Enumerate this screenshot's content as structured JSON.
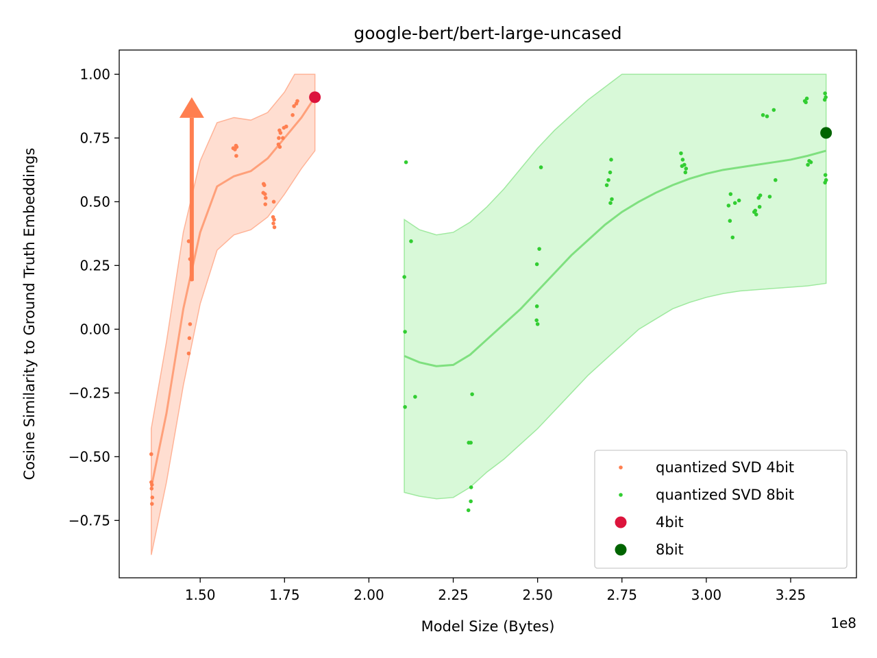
{
  "chart_data": {
    "type": "scatter",
    "title": "google-bert/bert-large-uncased",
    "xlabel": "Model Size (Bytes)",
    "ylabel": "Cosine Similarity to Ground Truth Embeddings",
    "x_offset_label": "1e8",
    "xlim": [
      1.26,
      3.445
    ],
    "ylim": [
      -0.975,
      1.095
    ],
    "x_ticks": [
      1.5,
      1.75,
      2.0,
      2.25,
      2.5,
      2.75,
      3.0,
      3.25
    ],
    "x_tick_labels": [
      "1.50",
      "1.75",
      "2.00",
      "2.25",
      "2.50",
      "2.75",
      "3.00",
      "3.25"
    ],
    "y_ticks": [
      1.0,
      0.75,
      0.5,
      0.25,
      0.0,
      -0.25,
      -0.5,
      -0.75
    ],
    "y_tick_labels": [
      "1.00",
      "0.75",
      "0.50",
      "0.25",
      "0.00",
      "−0.25",
      "−0.50",
      "−0.75"
    ],
    "legend_position": "lower-right",
    "series": [
      {
        "name": "quantized SVD 4bit",
        "color": "#ff7f50",
        "points": [
          [
            1.355,
            -0.49
          ],
          [
            1.355,
            -0.6
          ],
          [
            1.357,
            -0.61
          ],
          [
            1.356,
            -0.625
          ],
          [
            1.358,
            -0.66
          ],
          [
            1.357,
            -0.685
          ],
          [
            1.466,
            0.345
          ],
          [
            1.47,
            0.275
          ],
          [
            1.475,
            0.195
          ],
          [
            1.47,
            0.02
          ],
          [
            1.468,
            -0.035
          ],
          [
            1.466,
            -0.095
          ],
          [
            1.598,
            0.71
          ],
          [
            1.603,
            0.705
          ],
          [
            1.606,
            0.72
          ],
          [
            1.608,
            0.715
          ],
          [
            1.607,
            0.68
          ],
          [
            1.688,
            0.57
          ],
          [
            1.69,
            0.565
          ],
          [
            1.687,
            0.535
          ],
          [
            1.692,
            0.53
          ],
          [
            1.694,
            0.515
          ],
          [
            1.693,
            0.49
          ],
          [
            1.718,
            0.5
          ],
          [
            1.716,
            0.44
          ],
          [
            1.719,
            0.43
          ],
          [
            1.717,
            0.415
          ],
          [
            1.72,
            0.4
          ],
          [
            1.735,
            0.78
          ],
          [
            1.738,
            0.77
          ],
          [
            1.733,
            0.75
          ],
          [
            1.732,
            0.725
          ],
          [
            1.736,
            0.715
          ],
          [
            1.748,
            0.79
          ],
          [
            1.755,
            0.795
          ],
          [
            1.745,
            0.75
          ],
          [
            1.774,
            0.84
          ],
          [
            1.778,
            0.875
          ],
          [
            1.785,
            0.885
          ],
          [
            1.788,
            0.895
          ]
        ],
        "trend": [
          [
            1.355,
            -0.62
          ],
          [
            1.4,
            -0.33
          ],
          [
            1.45,
            0.08
          ],
          [
            1.5,
            0.38
          ],
          [
            1.55,
            0.56
          ],
          [
            1.6,
            0.6
          ],
          [
            1.65,
            0.62
          ],
          [
            1.7,
            0.67
          ],
          [
            1.75,
            0.75
          ],
          [
            1.8,
            0.83
          ],
          [
            1.84,
            0.91
          ]
        ],
        "band_upper": [
          [
            1.355,
            -0.39
          ],
          [
            1.4,
            -0.05
          ],
          [
            1.45,
            0.38
          ],
          [
            1.5,
            0.66
          ],
          [
            1.55,
            0.81
          ],
          [
            1.6,
            0.83
          ],
          [
            1.65,
            0.82
          ],
          [
            1.7,
            0.85
          ],
          [
            1.75,
            0.93
          ],
          [
            1.78,
            1.0
          ],
          [
            1.84,
            1.0
          ]
        ],
        "band_lower": [
          [
            1.355,
            -0.885
          ],
          [
            1.4,
            -0.6
          ],
          [
            1.45,
            -0.22
          ],
          [
            1.5,
            0.1
          ],
          [
            1.55,
            0.31
          ],
          [
            1.6,
            0.37
          ],
          [
            1.65,
            0.39
          ],
          [
            1.7,
            0.44
          ],
          [
            1.75,
            0.53
          ],
          [
            1.8,
            0.63
          ],
          [
            1.84,
            0.7
          ]
        ]
      },
      {
        "name": "quantized SVD 8bit",
        "color": "#32cd32",
        "points": [
          [
            2.11,
            0.655
          ],
          [
            2.125,
            0.345
          ],
          [
            2.105,
            0.205
          ],
          [
            2.107,
            -0.01
          ],
          [
            2.137,
            -0.265
          ],
          [
            2.107,
            -0.305
          ],
          [
            2.296,
            -0.445
          ],
          [
            2.302,
            -0.445
          ],
          [
            2.306,
            -0.255
          ],
          [
            2.303,
            -0.62
          ],
          [
            2.302,
            -0.675
          ],
          [
            2.295,
            -0.71
          ],
          [
            2.51,
            0.635
          ],
          [
            2.505,
            0.315
          ],
          [
            2.498,
            0.255
          ],
          [
            2.498,
            0.09
          ],
          [
            2.497,
            0.035
          ],
          [
            2.5,
            0.02
          ],
          [
            2.718,
            0.665
          ],
          [
            2.715,
            0.615
          ],
          [
            2.71,
            0.585
          ],
          [
            2.705,
            0.565
          ],
          [
            2.72,
            0.51
          ],
          [
            2.716,
            0.495
          ],
          [
            2.925,
            0.69
          ],
          [
            2.93,
            0.665
          ],
          [
            2.935,
            0.645
          ],
          [
            2.94,
            0.63
          ],
          [
            2.928,
            0.64
          ],
          [
            2.938,
            0.615
          ],
          [
            3.072,
            0.53
          ],
          [
            3.066,
            0.485
          ],
          [
            3.085,
            0.495
          ],
          [
            3.097,
            0.505
          ],
          [
            3.07,
            0.425
          ],
          [
            3.078,
            0.36
          ],
          [
            3.16,
            0.525
          ],
          [
            3.155,
            0.515
          ],
          [
            3.158,
            0.48
          ],
          [
            3.145,
            0.465
          ],
          [
            3.148,
            0.45
          ],
          [
            3.142,
            0.46
          ],
          [
            3.168,
            0.84
          ],
          [
            3.18,
            0.835
          ],
          [
            3.2,
            0.86
          ],
          [
            3.205,
            0.585
          ],
          [
            3.188,
            0.52
          ],
          [
            3.292,
            0.895
          ],
          [
            3.298,
            0.905
          ],
          [
            3.295,
            0.89
          ],
          [
            3.305,
            0.66
          ],
          [
            3.31,
            0.655
          ],
          [
            3.301,
            0.645
          ],
          [
            3.352,
            0.925
          ],
          [
            3.354,
            0.91
          ],
          [
            3.351,
            0.9
          ],
          [
            3.353,
            0.605
          ],
          [
            3.355,
            0.585
          ],
          [
            3.352,
            0.575
          ]
        ],
        "trend": [
          [
            2.105,
            -0.105
          ],
          [
            2.15,
            -0.13
          ],
          [
            2.2,
            -0.145
          ],
          [
            2.25,
            -0.14
          ],
          [
            2.3,
            -0.1
          ],
          [
            2.35,
            -0.04
          ],
          [
            2.4,
            0.02
          ],
          [
            2.45,
            0.08
          ],
          [
            2.5,
            0.15
          ],
          [
            2.55,
            0.22
          ],
          [
            2.6,
            0.29
          ],
          [
            2.65,
            0.35
          ],
          [
            2.7,
            0.41
          ],
          [
            2.75,
            0.46
          ],
          [
            2.8,
            0.5
          ],
          [
            2.85,
            0.535
          ],
          [
            2.9,
            0.565
          ],
          [
            2.95,
            0.59
          ],
          [
            3.0,
            0.61
          ],
          [
            3.05,
            0.625
          ],
          [
            3.1,
            0.635
          ],
          [
            3.15,
            0.645
          ],
          [
            3.2,
            0.655
          ],
          [
            3.25,
            0.665
          ],
          [
            3.3,
            0.68
          ],
          [
            3.355,
            0.7
          ]
        ],
        "band_upper": [
          [
            2.105,
            0.43
          ],
          [
            2.15,
            0.39
          ],
          [
            2.2,
            0.37
          ],
          [
            2.25,
            0.38
          ],
          [
            2.3,
            0.42
          ],
          [
            2.35,
            0.48
          ],
          [
            2.4,
            0.55
          ],
          [
            2.45,
            0.63
          ],
          [
            2.5,
            0.71
          ],
          [
            2.55,
            0.78
          ],
          [
            2.6,
            0.84
          ],
          [
            2.65,
            0.9
          ],
          [
            2.7,
            0.95
          ],
          [
            2.75,
            1.0
          ],
          [
            2.8,
            1.0
          ],
          [
            3.355,
            1.0
          ]
        ],
        "band_lower": [
          [
            2.105,
            -0.64
          ],
          [
            2.15,
            -0.655
          ],
          [
            2.2,
            -0.665
          ],
          [
            2.25,
            -0.66
          ],
          [
            2.3,
            -0.62
          ],
          [
            2.35,
            -0.56
          ],
          [
            2.4,
            -0.51
          ],
          [
            2.45,
            -0.45
          ],
          [
            2.5,
            -0.39
          ],
          [
            2.55,
            -0.32
          ],
          [
            2.6,
            -0.25
          ],
          [
            2.65,
            -0.18
          ],
          [
            2.7,
            -0.12
          ],
          [
            2.75,
            -0.06
          ],
          [
            2.8,
            0.0
          ],
          [
            2.85,
            0.04
          ],
          [
            2.9,
            0.08
          ],
          [
            2.95,
            0.105
          ],
          [
            3.0,
            0.125
          ],
          [
            3.05,
            0.14
          ],
          [
            3.1,
            0.15
          ],
          [
            3.15,
            0.155
          ],
          [
            3.2,
            0.16
          ],
          [
            3.25,
            0.165
          ],
          [
            3.3,
            0.17
          ],
          [
            3.355,
            0.18
          ]
        ]
      }
    ],
    "reference_points": [
      {
        "name": "4bit",
        "color": "#dc143c",
        "x": 1.84,
        "y": 0.91
      },
      {
        "name": "8bit",
        "color": "#006400",
        "x": 3.355,
        "y": 0.77
      }
    ],
    "arrow": {
      "color": "#ff7f50",
      "x": 1.475,
      "y_start": 0.19,
      "y_end": 0.91
    }
  }
}
